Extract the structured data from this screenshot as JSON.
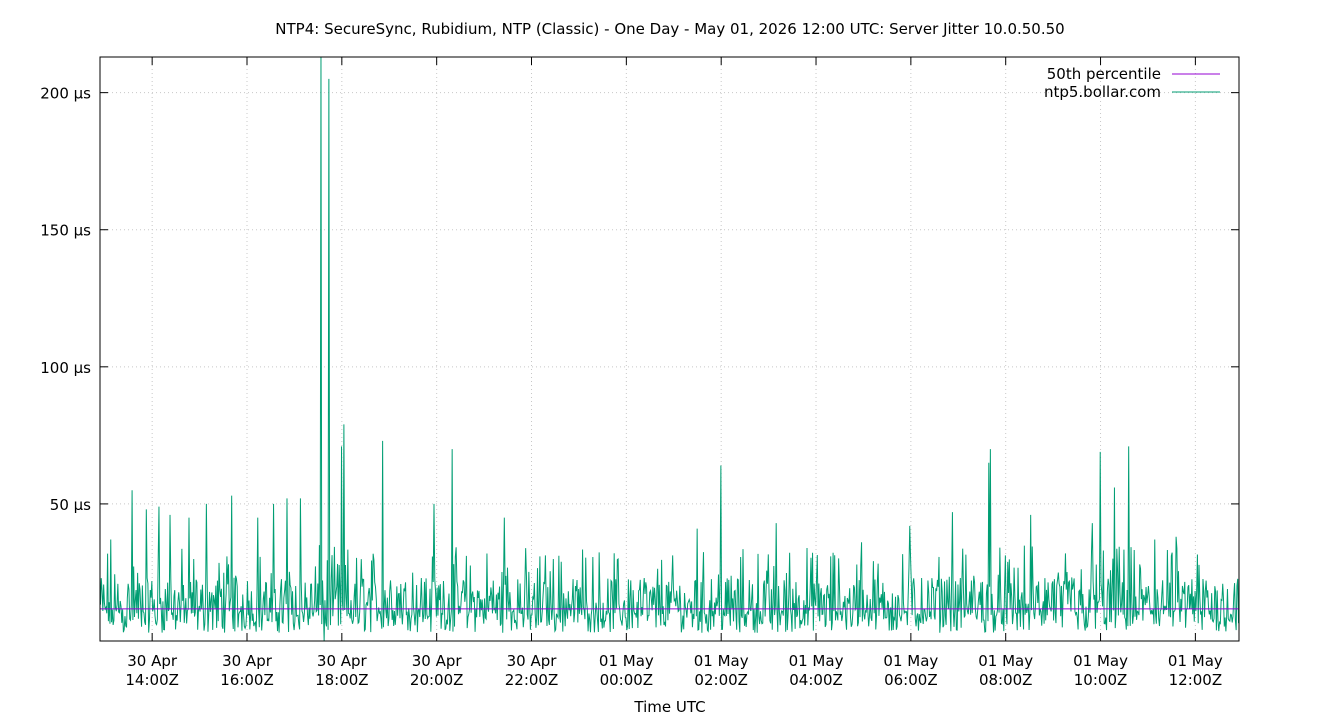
{
  "chart_data": {
    "type": "line",
    "title": "NTP4: SecureSync, Rubidium, NTP (Classic) - One Day - May 01, 2026 12:00 UTC: Server Jitter 10.0.50.50",
    "xlabel": "Time UTC",
    "ylabel": "",
    "x_range_hours": [
      12.9,
      24.8
    ],
    "ylim": [
      0,
      213
    ],
    "grid": true,
    "legend_position": "top-right",
    "y_ticks": [
      {
        "value": 50,
        "label": "50 µs"
      },
      {
        "value": 100,
        "label": "100 µs"
      },
      {
        "value": 150,
        "label": "150 µs"
      },
      {
        "value": 200,
        "label": "200 µs"
      }
    ],
    "x_ticks": [
      {
        "value": 14,
        "line1": "30 Apr",
        "line2": "14:00Z"
      },
      {
        "value": 16,
        "line1": "30 Apr",
        "line2": "16:00Z"
      },
      {
        "value": 18,
        "line1": "30 Apr",
        "line2": "18:00Z"
      },
      {
        "value": 20,
        "line1": "30 Apr",
        "line2": "20:00Z"
      },
      {
        "value": 22,
        "line1": "30 Apr",
        "line2": "22:00Z"
      },
      {
        "value": 24,
        "line1": "01 May",
        "line2": "00:00Z"
      },
      {
        "value": 26,
        "line1": "01 May",
        "line2": "02:00Z"
      },
      {
        "value": 28,
        "line1": "01 May",
        "line2": "04:00Z"
      },
      {
        "value": 30,
        "line1": "01 May",
        "line2": "06:00Z"
      },
      {
        "value": 32,
        "line1": "01 May",
        "line2": "08:00Z"
      },
      {
        "value": 34,
        "line1": "01 May",
        "line2": "10:00Z"
      },
      {
        "value": 36,
        "line1": "01 May",
        "line2": "12:00Z"
      }
    ],
    "series": [
      {
        "name": "50th percentile",
        "color": "#9400d3",
        "constant_value": 11.7
      },
      {
        "name": "ntp5.bollar.com",
        "color": "#009e73",
        "baseline_range": [
          3,
          35
        ],
        "spikes": [
          {
            "x": 13.12,
            "y": 37
          },
          {
            "x": 13.58,
            "y": 55
          },
          {
            "x": 13.88,
            "y": 48
          },
          {
            "x": 14.14,
            "y": 49
          },
          {
            "x": 14.38,
            "y": 46
          },
          {
            "x": 14.78,
            "y": 45
          },
          {
            "x": 15.14,
            "y": 50
          },
          {
            "x": 15.68,
            "y": 53
          },
          {
            "x": 16.22,
            "y": 45
          },
          {
            "x": 16.56,
            "y": 50
          },
          {
            "x": 16.84,
            "y": 52
          },
          {
            "x": 17.12,
            "y": 52
          },
          {
            "x": 17.56,
            "y": 213
          },
          {
            "x": 17.62,
            "y": 0
          },
          {
            "x": 17.72,
            "y": 205
          },
          {
            "x": 18.0,
            "y": 71
          },
          {
            "x": 18.04,
            "y": 79
          },
          {
            "x": 18.86,
            "y": 73
          },
          {
            "x": 19.94,
            "y": 50
          },
          {
            "x": 20.32,
            "y": 70
          },
          {
            "x": 21.42,
            "y": 45
          },
          {
            "x": 25.5,
            "y": 41
          },
          {
            "x": 26.0,
            "y": 64
          },
          {
            "x": 27.16,
            "y": 43
          },
          {
            "x": 28.96,
            "y": 36
          },
          {
            "x": 29.98,
            "y": 42
          },
          {
            "x": 30.88,
            "y": 47
          },
          {
            "x": 31.64,
            "y": 65
          },
          {
            "x": 31.68,
            "y": 70
          },
          {
            "x": 32.52,
            "y": 46
          },
          {
            "x": 33.82,
            "y": 43
          },
          {
            "x": 34.0,
            "y": 69
          },
          {
            "x": 34.3,
            "y": 56
          },
          {
            "x": 34.6,
            "y": 71
          },
          {
            "x": 35.14,
            "y": 37
          },
          {
            "x": 35.6,
            "y": 38
          }
        ]
      }
    ]
  }
}
